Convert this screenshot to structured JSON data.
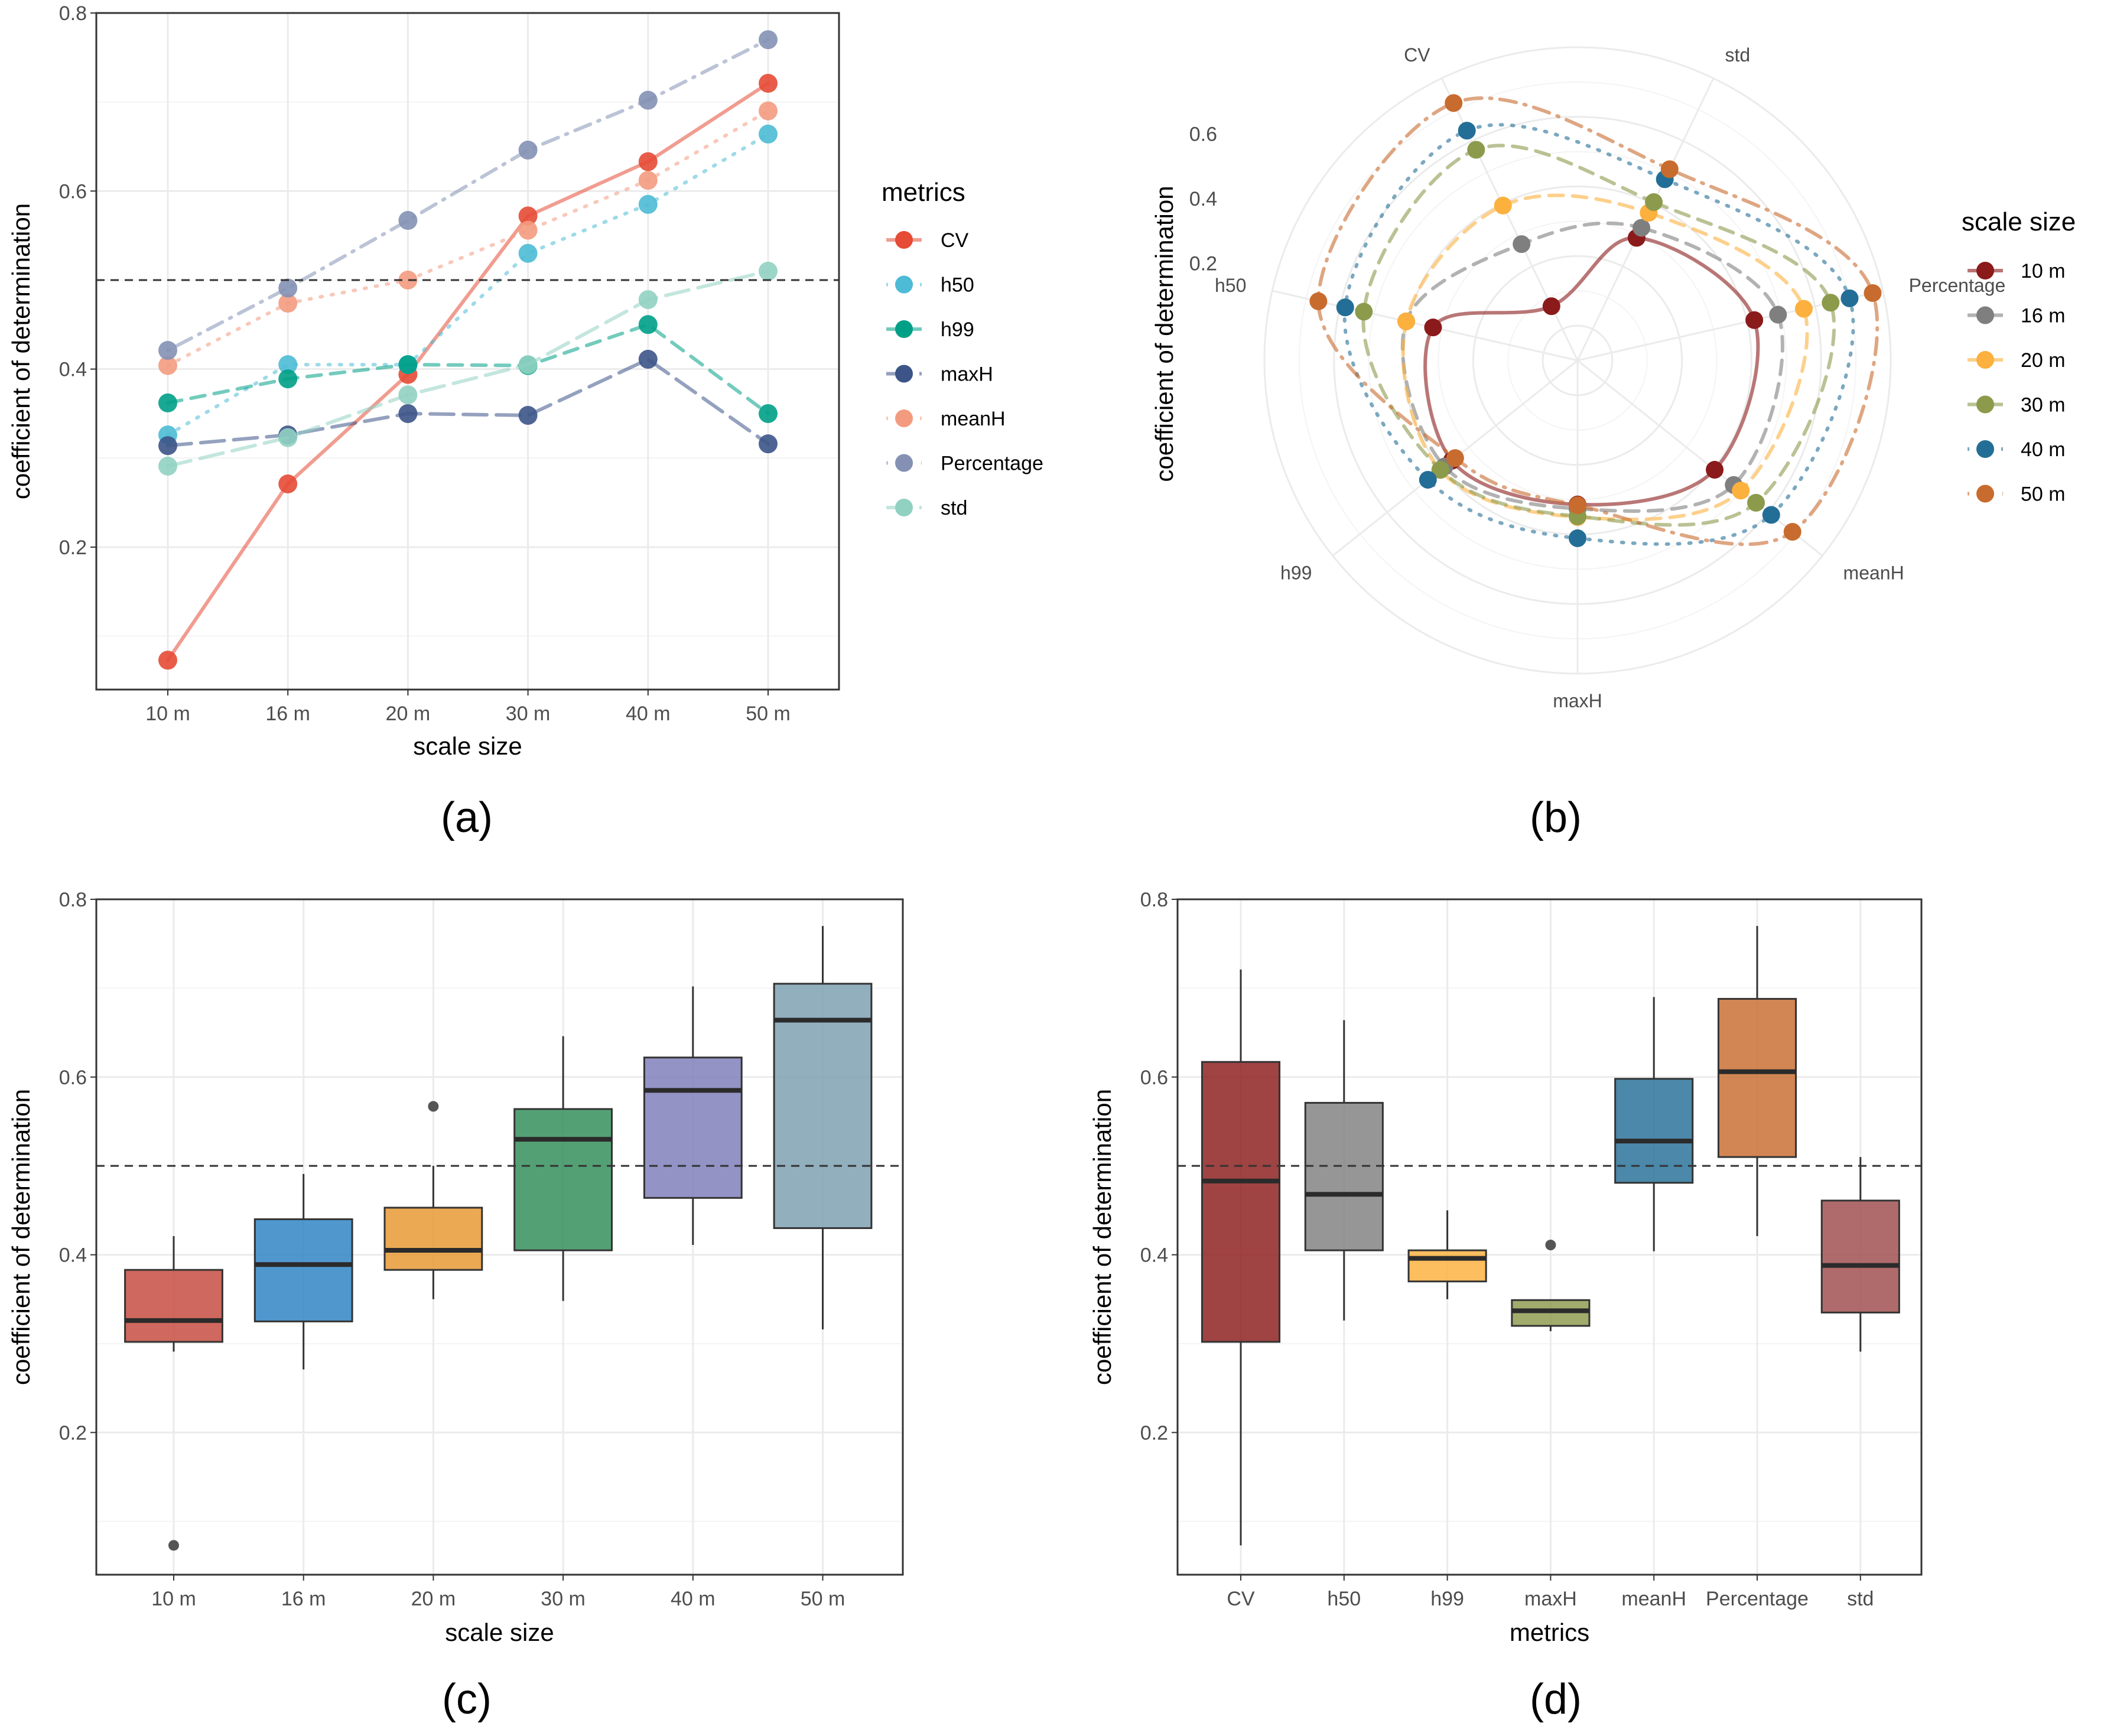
{
  "chart_data": [
    {
      "panel": "(a)",
      "type": "line",
      "xlabel": "scale size",
      "ylabel": "coefficient of determination",
      "categories": [
        "10 m",
        "16 m",
        "20 m",
        "30 m",
        "40 m",
        "50 m"
      ],
      "ylim": [
        0.04,
        0.8
      ],
      "yticks": [
        "0.2",
        "0.4",
        "0.6",
        "0.8"
      ],
      "reference_line": 0.5,
      "legend_title": "metrics",
      "legend_position": "right",
      "series": [
        {
          "name": "CV",
          "color": "#E64B35",
          "dash": "solid",
          "values": [
            0.073,
            0.271,
            0.394,
            0.572,
            0.633,
            0.721
          ]
        },
        {
          "name": "h50",
          "color": "#4DBBD5",
          "dash": "dotted",
          "values": [
            0.326,
            0.405,
            0.405,
            0.53,
            0.585,
            0.664
          ]
        },
        {
          "name": "h99",
          "color": "#00A087",
          "dash": "dashed",
          "values": [
            0.362,
            0.389,
            0.405,
            0.404,
            0.45,
            0.35
          ]
        },
        {
          "name": "maxH",
          "color": "#3C5488",
          "dash": "longdash",
          "values": [
            0.314,
            0.326,
            0.35,
            0.348,
            0.411,
            0.316
          ]
        },
        {
          "name": "meanH",
          "color": "#F39B7F",
          "dash": "dotted",
          "values": [
            0.404,
            0.474,
            0.5,
            0.556,
            0.612,
            0.69
          ]
        },
        {
          "name": "Percentage",
          "color": "#8491B4",
          "dash": "dotdash",
          "values": [
            0.421,
            0.491,
            0.567,
            0.646,
            0.702,
            0.77
          ]
        },
        {
          "name": "std",
          "color": "#91D1C2",
          "dash": "longdash",
          "values": [
            0.291,
            0.323,
            0.371,
            0.405,
            0.478,
            0.51
          ]
        }
      ]
    },
    {
      "panel": "(b)",
      "type": "line",
      "coord": "polar",
      "ylabel": "coefficient of determination",
      "categories": [
        "std",
        "Percentage",
        "meanH",
        "maxH",
        "h99",
        "h50",
        "CV"
      ],
      "rticks": [
        "0.2",
        "0.4",
        "0.6"
      ],
      "legend_title": "scale size",
      "legend_position": "right",
      "series": [
        {
          "name": "10 m",
          "color": "#8B1A1A",
          "dash": "solid",
          "values": [
            0.291,
            0.421,
            0.404,
            0.314,
            0.362,
            0.326,
            0.073
          ]
        },
        {
          "name": "16 m",
          "color": "#7F7F7F",
          "dash": "dashed",
          "values": [
            0.323,
            0.491,
            0.474,
            0.326,
            0.389,
            0.405,
            0.271
          ]
        },
        {
          "name": "20 m",
          "color": "#FCB03D",
          "dash": "dashed",
          "values": [
            0.371,
            0.567,
            0.5,
            0.35,
            0.405,
            0.405,
            0.394
          ]
        },
        {
          "name": "30 m",
          "color": "#8C9A4C",
          "dash": "dashed",
          "values": [
            0.405,
            0.646,
            0.556,
            0.348,
            0.404,
            0.53,
            0.572
          ]
        },
        {
          "name": "40 m",
          "color": "#236E96",
          "dash": "dotted",
          "values": [
            0.478,
            0.702,
            0.612,
            0.411,
            0.45,
            0.585,
            0.633
          ]
        },
        {
          "name": "50 m",
          "color": "#C86B2E",
          "dash": "dotdash",
          "values": [
            0.51,
            0.77,
            0.69,
            0.316,
            0.35,
            0.664,
            0.721
          ]
        }
      ]
    },
    {
      "panel": "(c)",
      "type": "box",
      "xlabel": "scale size",
      "ylabel": "coefficient of determination",
      "ylim": [
        0.04,
        0.8
      ],
      "yticks": [
        "0.2",
        "0.4",
        "0.6",
        "0.8"
      ],
      "reference_line": 0.5,
      "boxes": [
        {
          "label": "10 m",
          "color": "#C5473A",
          "whisker_low": 0.291,
          "q1": 0.302,
          "median": 0.326,
          "q3": 0.383,
          "whisker_high": 0.421,
          "outliers": [
            0.073
          ]
        },
        {
          "label": "16 m",
          "color": "#2980C3",
          "whisker_low": 0.271,
          "q1": 0.325,
          "median": 0.389,
          "q3": 0.44,
          "whisker_high": 0.491,
          "outliers": []
        },
        {
          "label": "20 m",
          "color": "#E6962E",
          "whisker_low": 0.35,
          "q1": 0.383,
          "median": 0.405,
          "q3": 0.453,
          "whisker_high": 0.5,
          "outliers": [
            0.567
          ]
        },
        {
          "label": "30 m",
          "color": "#2E8B57",
          "whisker_low": 0.348,
          "q1": 0.405,
          "median": 0.53,
          "q3": 0.564,
          "whisker_high": 0.646,
          "outliers": []
        },
        {
          "label": "40 m",
          "color": "#7B7BB8",
          "whisker_low": 0.411,
          "q1": 0.464,
          "median": 0.585,
          "q3": 0.622,
          "whisker_high": 0.702,
          "outliers": []
        },
        {
          "label": "50 m",
          "color": "#7A9DB0",
          "whisker_low": 0.316,
          "q1": 0.43,
          "median": 0.664,
          "q3": 0.705,
          "whisker_high": 0.77,
          "outliers": []
        }
      ]
    },
    {
      "panel": "(d)",
      "type": "box",
      "xlabel": "metrics",
      "ylabel": "coefficient of determination",
      "ylim": [
        0.04,
        0.8
      ],
      "yticks": [
        "0.2",
        "0.4",
        "0.6",
        "0.8"
      ],
      "reference_line": 0.5,
      "boxes": [
        {
          "label": "CV",
          "color": "#8B1A1A",
          "whisker_low": 0.073,
          "q1": 0.302,
          "median": 0.483,
          "q3": 0.617,
          "whisker_high": 0.721,
          "outliers": []
        },
        {
          "label": "h50",
          "color": "#7F7F7F",
          "whisker_low": 0.326,
          "q1": 0.405,
          "median": 0.468,
          "q3": 0.571,
          "whisker_high": 0.664,
          "outliers": []
        },
        {
          "label": "h99",
          "color": "#FCB03D",
          "whisker_low": 0.35,
          "q1": 0.37,
          "median": 0.396,
          "q3": 0.405,
          "whisker_high": 0.45,
          "outliers": []
        },
        {
          "label": "maxH",
          "color": "#8C9A4C",
          "whisker_low": 0.314,
          "q1": 0.32,
          "median": 0.337,
          "q3": 0.349,
          "whisker_high": 0.349,
          "outliers": [
            0.411
          ]
        },
        {
          "label": "meanH",
          "color": "#236E96",
          "whisker_low": 0.404,
          "q1": 0.481,
          "median": 0.528,
          "q3": 0.598,
          "whisker_high": 0.69,
          "outliers": []
        },
        {
          "label": "Percentage",
          "color": "#C86B2E",
          "whisker_low": 0.421,
          "q1": 0.51,
          "median": 0.606,
          "q3": 0.688,
          "whisker_high": 0.77,
          "outliers": []
        },
        {
          "label": "std",
          "color": "#9E4A4A",
          "whisker_low": 0.291,
          "q1": 0.335,
          "median": 0.388,
          "q3": 0.461,
          "whisker_high": 0.51,
          "outliers": []
        }
      ]
    }
  ]
}
